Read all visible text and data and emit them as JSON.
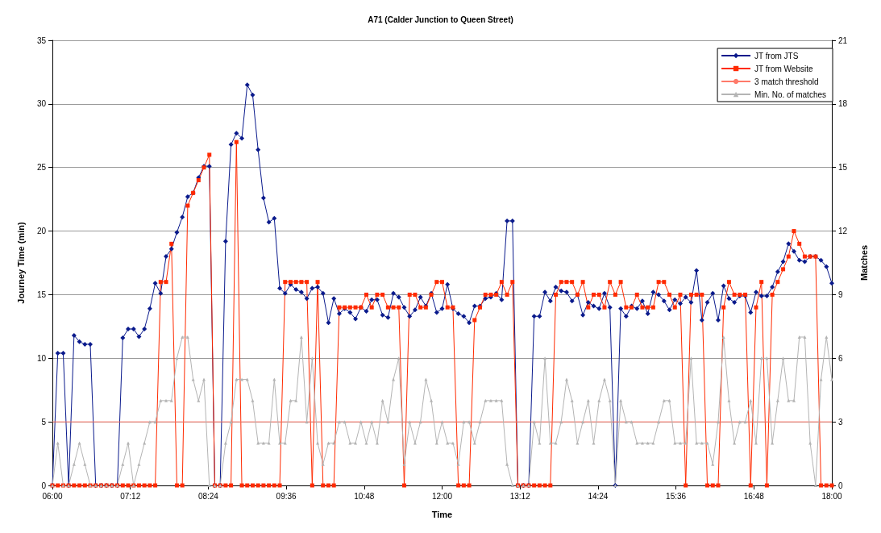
{
  "chart_data": {
    "type": "line",
    "title": "A71 (Calder Junction to Queen Street)",
    "xlabel": "Time",
    "ylabel": "Journey Time (min)",
    "y2label": "Matches",
    "x": [
      6,
      6.0833,
      6.1667,
      6.25,
      6.3333,
      6.4167,
      6.5,
      6.5833,
      6.6667,
      6.75,
      6.8333,
      6.9167,
      7,
      7.0833,
      7.1667,
      7.25,
      7.3333,
      7.4167,
      7.5,
      7.5833,
      7.6667,
      7.75,
      7.8333,
      7.9167,
      8,
      8.0833,
      8.1667,
      8.25,
      8.3333,
      8.4167,
      8.5,
      8.5833,
      8.6667,
      8.75,
      8.8333,
      8.9167,
      9,
      9.0833,
      9.1667,
      9.25,
      9.3333,
      9.4167,
      9.5,
      9.5833,
      9.6667,
      9.75,
      9.8333,
      9.9167,
      10,
      10.0833,
      10.1667,
      10.25,
      10.3333,
      10.4167,
      10.5,
      10.5833,
      10.6667,
      10.75,
      10.8333,
      10.9167,
      11,
      11.0833,
      11.1667,
      11.25,
      11.3333,
      11.4167,
      11.5,
      11.5833,
      11.6667,
      11.75,
      11.8333,
      11.9167,
      12,
      12.0833,
      12.1667,
      12.25,
      12.3333,
      12.4167,
      12.5,
      12.5833,
      12.6667,
      12.75,
      12.8333,
      12.9167,
      13,
      13.0833,
      13.1667,
      13.25,
      13.3333,
      13.4167,
      13.5,
      13.5833,
      13.6667,
      13.75,
      13.8333,
      13.9167,
      14,
      14.0833,
      14.1667,
      14.25,
      14.3333,
      14.4167,
      14.5,
      14.5833,
      14.6667,
      14.75,
      14.8333,
      14.9167,
      15,
      15.0833,
      15.1667,
      15.25,
      15.3333,
      15.4167,
      15.5,
      15.5833,
      15.6667,
      15.75,
      15.8333,
      15.9167,
      16,
      16.0833,
      16.1667,
      16.25,
      16.3333,
      16.4167,
      16.5,
      16.5833,
      16.6667,
      16.75,
      16.8333,
      16.9167,
      17,
      17.0833,
      17.1667,
      17.25,
      17.3333,
      17.4167,
      17.5,
      17.5833,
      17.6667,
      17.75,
      17.8333,
      17.9167,
      18
    ],
    "series": [
      {
        "name": "JT from JTS",
        "color": "#0a1a8c",
        "marker": "diamond",
        "values": [
          0,
          10.4,
          10.4,
          0,
          11.8,
          11.3,
          11.1,
          11.1,
          0,
          0,
          0,
          0,
          0,
          11.6,
          12.3,
          12.3,
          11.7,
          12.3,
          13.9,
          15.9,
          15.1,
          18.0,
          18.6,
          19.9,
          21.1,
          22.7,
          23.0,
          24.2,
          25.1,
          25.1,
          0,
          0,
          19.2,
          26.8,
          27.7,
          27.3,
          31.5,
          30.7,
          26.4,
          22.6,
          20.7,
          21.0,
          15.5,
          15.1,
          15.8,
          15.4,
          15.2,
          14.7,
          15.5,
          15.6,
          15.1,
          12.8,
          14.7,
          13.5,
          13.9,
          13.6,
          13.1,
          14.0,
          13.7,
          14.6,
          14.6,
          13.4,
          13.2,
          15.1,
          14.8,
          14.0,
          13.3,
          13.8,
          14.8,
          14.1,
          15.1,
          13.6,
          13.9,
          15.8,
          13.9,
          13.5,
          13.3,
          12.8,
          14.1,
          14.1,
          14.7,
          14.8,
          15.1,
          14.6,
          20.8,
          20.8,
          0,
          0,
          0,
          13.3,
          13.3,
          15.2,
          14.5,
          15.6,
          15.3,
          15.2,
          14.5,
          15.0,
          13.4,
          14.4,
          14.1,
          13.9,
          15.1,
          14.0,
          0,
          13.9,
          13.3,
          14.1,
          13.9,
          14.5,
          13.5,
          15.2,
          15.0,
          14.5,
          13.8,
          14.6,
          14.3,
          14.8,
          14.4,
          16.9,
          13.0,
          14.4,
          15.1,
          13.0,
          15.7,
          14.7,
          14.4,
          14.9,
          14.9,
          13.6,
          15.2,
          14.9,
          14.9,
          15.6,
          16.8,
          17.6,
          19.0,
          18.4,
          17.7,
          17.6,
          18.0,
          18.0,
          17.7,
          17.2,
          15.9
        ]
      },
      {
        "name": "JT from Website",
        "color": "#ff2a00",
        "marker": "square",
        "values": [
          0,
          0,
          0,
          0,
          0,
          0,
          0,
          0,
          0,
          0,
          0,
          0,
          0,
          0,
          0,
          0,
          0,
          0,
          0,
          0,
          16,
          16,
          19,
          0,
          0,
          22,
          23,
          24,
          25,
          26,
          0,
          0,
          0,
          0,
          27,
          0,
          0,
          0,
          0,
          0,
          0,
          0,
          0,
          16,
          16,
          16,
          16,
          16,
          0,
          16,
          0,
          0,
          0,
          14,
          14,
          14,
          14,
          14,
          15,
          14,
          15,
          15,
          14,
          14,
          14,
          0,
          15,
          15,
          14,
          14,
          15,
          16,
          16,
          14,
          14,
          0,
          0,
          0,
          13,
          14,
          15,
          15,
          15,
          16,
          15,
          16,
          0,
          0,
          0,
          0,
          0,
          0,
          0,
          15,
          16,
          16,
          16,
          15,
          16,
          14,
          15,
          15,
          14,
          16,
          15,
          16,
          14,
          14,
          15,
          14,
          14,
          14,
          16,
          16,
          15,
          14,
          15,
          0,
          15,
          15,
          15,
          0,
          0,
          0,
          14,
          16,
          15,
          15,
          15,
          0,
          14,
          16,
          0,
          15,
          16,
          17,
          18,
          20,
          19,
          18,
          18,
          18,
          0,
          0,
          0
        ]
      },
      {
        "name": "3 match threshold",
        "color": "#ff7a6a",
        "marker": "none",
        "axis": "y2",
        "x": [
          6,
          18
        ],
        "values": [
          3,
          3
        ]
      },
      {
        "name": "Min. No. of matches",
        "color": "#b4b4b4",
        "marker": "triangle",
        "axis": "y2",
        "values": [
          0,
          2,
          0,
          0,
          1,
          2,
          1,
          0,
          0,
          0,
          0,
          0,
          0,
          1,
          2,
          0,
          1,
          2,
          3,
          3,
          4,
          4,
          4,
          6,
          7,
          7,
          5,
          4,
          5,
          0,
          0,
          0,
          2,
          3,
          5,
          5,
          5,
          4,
          2,
          2,
          2,
          5,
          2,
          2,
          4,
          4,
          7,
          3,
          6,
          2,
          1,
          2,
          2,
          3,
          3,
          2,
          2,
          3,
          2,
          3,
          2,
          4,
          3,
          5,
          6,
          1,
          3,
          2,
          3,
          5,
          4,
          2,
          3,
          2,
          2,
          1,
          3,
          3,
          2,
          3,
          4,
          4,
          4,
          4,
          1,
          0,
          0,
          0,
          0,
          3,
          2,
          6,
          2,
          2,
          3,
          5,
          4,
          2,
          3,
          4,
          2,
          4,
          5,
          4,
          0,
          4,
          3,
          3,
          2,
          2,
          2,
          2,
          3,
          4,
          4,
          2,
          2,
          2,
          6,
          2,
          2,
          2,
          1,
          3,
          7,
          4,
          2,
          3,
          3,
          4,
          2,
          6,
          6,
          2,
          4,
          6,
          4,
          4,
          7,
          7,
          2,
          0,
          5,
          7,
          5
        ]
      }
    ],
    "xlim": [
      6,
      18
    ],
    "xticks": [
      {
        "value": 6,
        "label": "06:00"
      },
      {
        "value": 7.2,
        "label": "07:12"
      },
      {
        "value": 8.4,
        "label": "08:24"
      },
      {
        "value": 9.6,
        "label": "09:36"
      },
      {
        "value": 10.8,
        "label": "10:48"
      },
      {
        "value": 12,
        "label": "12:00"
      },
      {
        "value": 13.2,
        "label": "13:12"
      },
      {
        "value": 14.4,
        "label": "14:24"
      },
      {
        "value": 15.6,
        "label": "15:36"
      },
      {
        "value": 16.8,
        "label": "16:48"
      },
      {
        "value": 18,
        "label": "18:00"
      }
    ],
    "ylim": [
      0,
      35
    ],
    "yticks": [
      0,
      5,
      10,
      15,
      20,
      25,
      30,
      35
    ],
    "y2lim": [
      0,
      21
    ],
    "y2ticks": [
      0,
      3,
      6,
      9,
      12,
      15,
      18,
      21
    ],
    "grid": "y",
    "legend": "top right"
  }
}
